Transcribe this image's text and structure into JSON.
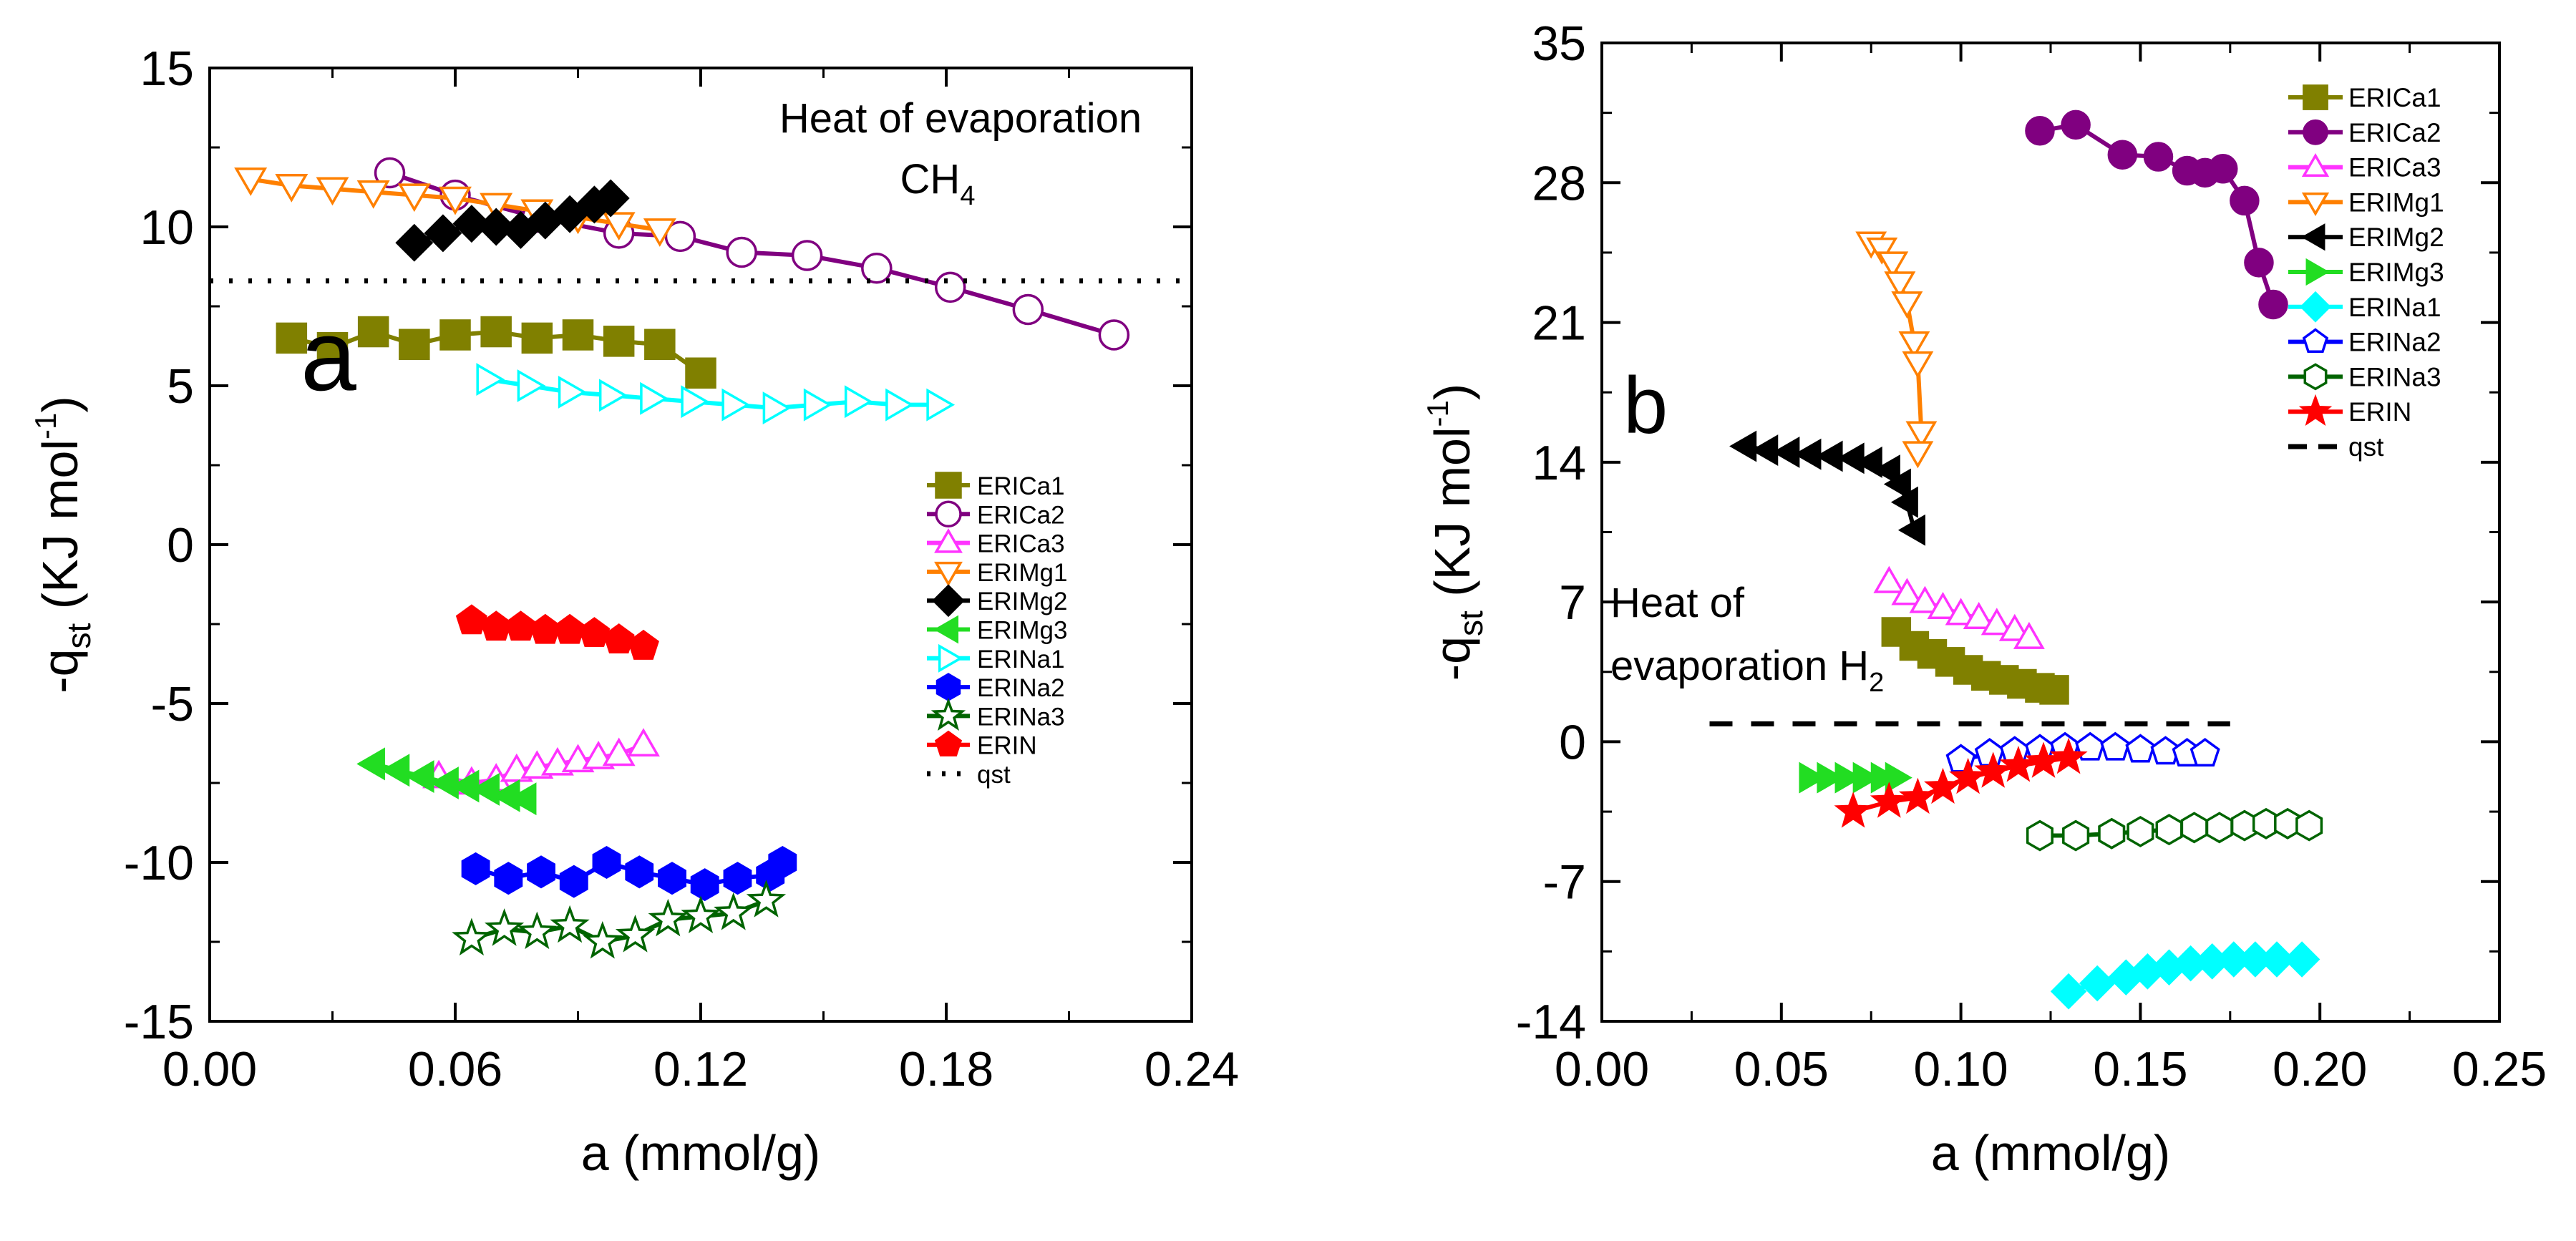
{
  "chart_data": [
    {
      "panel_id": "a",
      "type": "scatter",
      "panel_label": "a",
      "xlabel": "a (mmol/g)",
      "ylabel_main": "-q",
      "ylabel_sub": "st",
      "ylabel_unit_main": " (KJ mol",
      "ylabel_unit_sup": "-1",
      "ylabel_unit_end": ")",
      "xlim": [
        0,
        0.24
      ],
      "ylim": [
        -15,
        15
      ],
      "xticks": [
        0.0,
        0.06,
        0.12,
        0.18,
        0.24
      ],
      "xtick_labels": [
        "0.00",
        "0.06",
        "0.12",
        "0.18",
        "0.24"
      ],
      "yticks": [
        -15,
        -10,
        -5,
        0,
        5,
        10,
        15
      ],
      "ytick_labels": [
        "-15",
        "-10",
        "-5",
        "0",
        "5",
        "10",
        "15"
      ],
      "annotation_line1": "Heat  of evaporation",
      "annotation_line2": "CH",
      "annotation_sub": "4",
      "legend_position": "bottom-right",
      "series": [
        {
          "name": "ERICa1",
          "color": "#808000",
          "marker": "square",
          "filled": true,
          "line": true,
          "x": [
            0.02,
            0.03,
            0.04,
            0.05,
            0.06,
            0.07,
            0.08,
            0.09,
            0.1,
            0.11,
            0.12
          ],
          "y": [
            6.5,
            6.2,
            6.7,
            6.3,
            6.6,
            6.7,
            6.5,
            6.6,
            6.4,
            6.3,
            5.4
          ]
        },
        {
          "name": "ERICa2",
          "color": "#800080",
          "marker": "circle",
          "filled": false,
          "line": true,
          "x": [
            0.044,
            0.06,
            0.08,
            0.1,
            0.115,
            0.13,
            0.146,
            0.163,
            0.181,
            0.2,
            0.221
          ],
          "y": [
            11.7,
            11.0,
            10.3,
            9.8,
            9.7,
            9.2,
            9.1,
            8.7,
            8.1,
            7.4,
            6.6
          ]
        },
        {
          "name": "ERICa3",
          "color": "#ff33ff",
          "marker": "triangle-up",
          "filled": false,
          "line": true,
          "x": [
            0.056,
            0.064,
            0.07,
            0.075,
            0.08,
            0.085,
            0.09,
            0.095,
            0.1,
            0.106
          ],
          "y": [
            -7.3,
            -7.5,
            -7.4,
            -7.1,
            -7.0,
            -6.9,
            -6.8,
            -6.7,
            -6.6,
            -6.3
          ]
        },
        {
          "name": "ERIMg1",
          "color": "#ff8000",
          "marker": "triangle-down",
          "filled": false,
          "line": true,
          "x": [
            0.01,
            0.02,
            0.03,
            0.04,
            0.05,
            0.06,
            0.07,
            0.08,
            0.09,
            0.1,
            0.11
          ],
          "y": [
            11.5,
            11.3,
            11.2,
            11.1,
            11.0,
            10.9,
            10.7,
            10.5,
            10.3,
            10.1,
            9.9
          ]
        },
        {
          "name": "ERIMg2",
          "color": "#000000",
          "marker": "diamond",
          "filled": true,
          "line": true,
          "x": [
            0.05,
            0.057,
            0.064,
            0.07,
            0.076,
            0.082,
            0.088,
            0.094,
            0.098
          ],
          "y": [
            9.5,
            9.8,
            10.1,
            10.0,
            9.9,
            10.2,
            10.4,
            10.7,
            10.9
          ]
        },
        {
          "name": "ERIMg3",
          "color": "#22dd22",
          "marker": "triangle-left",
          "filled": true,
          "line": true,
          "x": [
            0.04,
            0.046,
            0.052,
            0.058,
            0.063,
            0.068,
            0.073,
            0.077
          ],
          "y": [
            -6.9,
            -7.1,
            -7.3,
            -7.5,
            -7.6,
            -7.7,
            -7.9,
            -8.0
          ]
        },
        {
          "name": "ERINa1",
          "color": "#00ffff",
          "marker": "triangle-right",
          "filled": false,
          "line": true,
          "x": [
            0.068,
            0.078,
            0.088,
            0.098,
            0.108,
            0.118,
            0.128,
            0.138,
            0.148,
            0.158,
            0.168,
            0.178
          ],
          "y": [
            5.2,
            5.0,
            4.8,
            4.7,
            4.6,
            4.5,
            4.4,
            4.3,
            4.4,
            4.5,
            4.4,
            4.4
          ]
        },
        {
          "name": "ERINa2",
          "color": "#0000ff",
          "marker": "hexagon",
          "filled": true,
          "line": true,
          "x": [
            0.065,
            0.073,
            0.081,
            0.089,
            0.097,
            0.105,
            0.113,
            0.121,
            0.129,
            0.137,
            0.14
          ],
          "y": [
            -10.2,
            -10.5,
            -10.3,
            -10.6,
            -10.0,
            -10.3,
            -10.5,
            -10.7,
            -10.5,
            -10.4,
            -10.0
          ]
        },
        {
          "name": "ERINa3",
          "color": "#006400",
          "marker": "star",
          "filled": false,
          "line": true,
          "x": [
            0.064,
            0.072,
            0.08,
            0.088,
            0.096,
            0.104,
            0.112,
            0.12,
            0.128,
            0.136
          ],
          "y": [
            -12.4,
            -12.1,
            -12.2,
            -12.0,
            -12.5,
            -12.3,
            -11.8,
            -11.7,
            -11.6,
            -11.2
          ]
        },
        {
          "name": "ERIN",
          "color": "#ff0000",
          "marker": "pentagon",
          "filled": true,
          "line": true,
          "x": [
            0.064,
            0.07,
            0.076,
            0.082,
            0.088,
            0.094,
            0.1,
            0.106
          ],
          "y": [
            -2.4,
            -2.6,
            -2.6,
            -2.7,
            -2.7,
            -2.8,
            -3.0,
            -3.2
          ]
        },
        {
          "name": "qst",
          "color": "#000000",
          "marker": "none",
          "filled": false,
          "line": true,
          "line_style": "dotted",
          "x": [
            0.0,
            0.24
          ],
          "y": [
            8.3,
            8.3
          ]
        }
      ]
    },
    {
      "panel_id": "b",
      "type": "scatter",
      "panel_label": "b",
      "xlabel": "a (mmol/g)",
      "ylabel_main": "-q",
      "ylabel_sub": "st",
      "ylabel_unit_main": " (KJ mol",
      "ylabel_unit_sup": "-1",
      "ylabel_unit_end": ")",
      "xlim": [
        0,
        0.25
      ],
      "ylim": [
        -14,
        35
      ],
      "xticks": [
        0.0,
        0.05,
        0.1,
        0.15,
        0.2,
        0.25
      ],
      "xtick_labels": [
        "0.00",
        "0.05",
        "0.10",
        "0.15",
        "0.20",
        "0.25"
      ],
      "yticks": [
        -14,
        -7,
        0,
        7,
        14,
        21,
        28,
        35
      ],
      "ytick_labels": [
        "-14",
        "-7",
        "0",
        "7",
        "14",
        "21",
        "28",
        "35"
      ],
      "annotation_line1": "Heat of",
      "annotation_line2": "evaporation  H",
      "annotation_sub": "2",
      "legend_position": "top-right",
      "series": [
        {
          "name": "ERICa1",
          "color": "#808000",
          "marker": "square",
          "filled": true,
          "line": true,
          "x": [
            0.082,
            0.087,
            0.092,
            0.097,
            0.102,
            0.107,
            0.112,
            0.117,
            0.122,
            0.126
          ],
          "y": [
            5.5,
            4.8,
            4.4,
            4.0,
            3.6,
            3.3,
            3.1,
            2.9,
            2.7,
            2.6
          ]
        },
        {
          "name": "ERICa2",
          "color": "#800080",
          "marker": "circle",
          "filled": true,
          "line": true,
          "x": [
            0.122,
            0.132,
            0.145,
            0.155,
            0.163,
            0.168,
            0.173,
            0.179,
            0.183,
            0.187
          ],
          "y": [
            30.6,
            30.9,
            29.4,
            29.3,
            28.6,
            28.5,
            28.7,
            27.1,
            24.0,
            21.9
          ]
        },
        {
          "name": "ERICa3",
          "color": "#ff33ff",
          "marker": "triangle-up",
          "filled": false,
          "line": true,
          "x": [
            0.08,
            0.085,
            0.09,
            0.095,
            0.1,
            0.105,
            0.11,
            0.115,
            0.119
          ],
          "y": [
            8.0,
            7.4,
            7.0,
            6.7,
            6.4,
            6.2,
            5.9,
            5.6,
            5.2
          ]
        },
        {
          "name": "ERIMg1",
          "color": "#ff8000",
          "marker": "triangle-down",
          "filled": false,
          "line": true,
          "x": [
            0.075,
            0.078,
            0.081,
            0.083,
            0.085,
            0.087,
            0.088,
            0.089,
            0.088
          ],
          "y": [
            25.0,
            24.7,
            24.0,
            23.0,
            22.0,
            20.0,
            19.0,
            15.5,
            14.5
          ]
        },
        {
          "name": "ERIMg2",
          "color": "#000000",
          "marker": "triangle-left",
          "filled": true,
          "line": true,
          "x": [
            0.04,
            0.046,
            0.052,
            0.058,
            0.064,
            0.07,
            0.075,
            0.08,
            0.083,
            0.085,
            0.087
          ],
          "y": [
            14.8,
            14.6,
            14.5,
            14.4,
            14.3,
            14.2,
            14.0,
            13.6,
            12.9,
            12.0,
            10.6
          ]
        },
        {
          "name": "ERIMg3",
          "color": "#22dd22",
          "marker": "triangle-right",
          "filled": true,
          "line": true,
          "x": [
            0.058,
            0.063,
            0.068,
            0.073,
            0.078,
            0.082
          ],
          "y": [
            -1.8,
            -1.8,
            -1.8,
            -1.8,
            -1.8,
            -1.8
          ]
        },
        {
          "name": "ERINa1",
          "color": "#00ffff",
          "marker": "diamond",
          "filled": true,
          "line": true,
          "x": [
            0.13,
            0.138,
            0.146,
            0.152,
            0.158,
            0.164,
            0.17,
            0.176,
            0.182,
            0.188,
            0.195
          ],
          "y": [
            -12.5,
            -12.1,
            -11.8,
            -11.5,
            -11.3,
            -11.1,
            -11.0,
            -10.9,
            -10.9,
            -10.9,
            -10.9
          ]
        },
        {
          "name": "ERINa2",
          "color": "#0000ff",
          "marker": "pentagon",
          "filled": false,
          "line": true,
          "x": [
            0.1,
            0.108,
            0.115,
            0.122,
            0.129,
            0.136,
            0.143,
            0.15,
            0.157,
            0.163,
            0.168
          ],
          "y": [
            -0.9,
            -0.6,
            -0.5,
            -0.4,
            -0.3,
            -0.3,
            -0.3,
            -0.4,
            -0.5,
            -0.6,
            -0.6
          ]
        },
        {
          "name": "ERINa3",
          "color": "#006400",
          "marker": "hexagon",
          "filled": false,
          "line": true,
          "x": [
            0.122,
            0.132,
            0.142,
            0.15,
            0.158,
            0.165,
            0.172,
            0.179,
            0.185,
            0.191,
            0.197
          ],
          "y": [
            -4.7,
            -4.7,
            -4.6,
            -4.5,
            -4.4,
            -4.3,
            -4.3,
            -4.2,
            -4.1,
            -4.1,
            -4.2
          ]
        },
        {
          "name": "ERIN",
          "color": "#ff0000",
          "marker": "star",
          "filled": true,
          "line": true,
          "x": [
            0.07,
            0.08,
            0.088,
            0.095,
            0.102,
            0.109,
            0.116,
            0.123,
            0.13
          ],
          "y": [
            -3.5,
            -3.0,
            -2.8,
            -2.3,
            -1.8,
            -1.5,
            -1.2,
            -1.0,
            -0.8
          ]
        },
        {
          "name": "qst",
          "color": "#000000",
          "marker": "none",
          "filled": false,
          "line": true,
          "line_style": "dashed",
          "x": [
            0.03,
            0.175
          ],
          "y": [
            0.9,
            0.9
          ]
        }
      ]
    }
  ]
}
